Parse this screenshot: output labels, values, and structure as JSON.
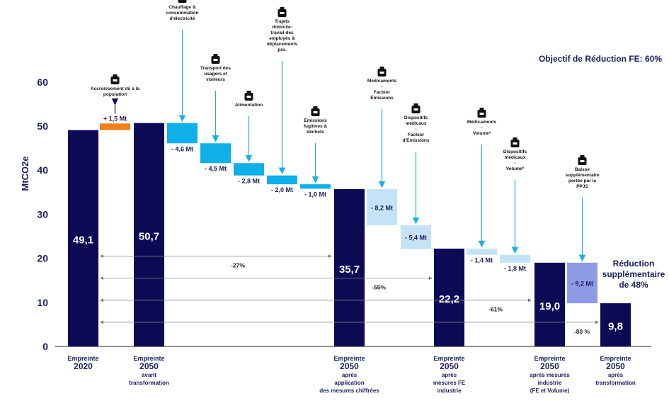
{
  "objective_label": "Objectif de Réduction FE: 60%",
  "extra_reduction_line1": "Réduction",
  "extra_reduction_line2": "supplémentaire",
  "extra_reduction_line3": "de 48%",
  "colors": {
    "navy": "#0c0a55",
    "orange": "#f07f1c",
    "cyan": "#0fb0ea",
    "light_blue": "#c4e3f6",
    "lavender": "#8e9ae6",
    "arrow": "#1aaee6",
    "text": "#1a1f5c"
  },
  "chart_data": {
    "type": "waterfall",
    "ylabel": "MtCO2e",
    "ylim": [
      0,
      60
    ],
    "yticks": [
      0,
      10,
      20,
      30,
      40,
      50,
      60
    ],
    "totals": [
      {
        "value": 49.1,
        "label": "49,1",
        "category": [
          "Empreinte",
          "2020"
        ]
      },
      {
        "value": 50.7,
        "label": "50,7",
        "category": [
          "Empreinte",
          "2050",
          "avant",
          "transformation"
        ]
      },
      {
        "value": 35.7,
        "label": "35,7",
        "category": [
          "Empreinte",
          "2050",
          "après",
          "application",
          "des mesures chiffrées"
        ]
      },
      {
        "value": 22.2,
        "label": "22,2",
        "category": [
          "Empreinte",
          "2050",
          "après",
          "mesures FE",
          "industrie"
        ]
      },
      {
        "value": 19.0,
        "label": "19,0",
        "category": [
          "Empreinte",
          "2050",
          "après mesures",
          "industrie",
          "(FE et Volume)"
        ]
      },
      {
        "value": 9.8,
        "label": "9,8",
        "category": [
          "Empreinte",
          "2050",
          "après",
          "transformation"
        ]
      }
    ],
    "steps": [
      {
        "delta": 1.5,
        "start": 49.1,
        "label": "+ 1,5 Mt",
        "color": "orange",
        "annotation": [
          "Accroissement dû à la",
          "population"
        ],
        "icon": "people-icon"
      },
      {
        "delta": -4.6,
        "start": 50.7,
        "label": "- 4,6 Mt",
        "color": "cyan",
        "annotation": [
          "Chauffage &",
          "consommation",
          "d'électricité"
        ],
        "icon": "thermometer-icon"
      },
      {
        "delta": -4.5,
        "start": 46.1,
        "label": "- 4,5 Mt",
        "color": "cyan",
        "annotation": [
          "Transport des",
          "usagers et",
          "visiteurs"
        ],
        "icon": "ambulance-icon"
      },
      {
        "delta": -2.8,
        "start": 41.6,
        "label": "- 2,8 Mt",
        "color": "cyan",
        "annotation": [
          "Alimentation"
        ],
        "icon": "plate-icon"
      },
      {
        "delta": -2.0,
        "start": 38.8,
        "label": "- 2,0 Mt",
        "color": "cyan",
        "annotation": [
          "Trajets",
          "domicile-",
          "travail des",
          "employés &",
          "déplacements",
          "pro."
        ],
        "icon": "car-icon"
      },
      {
        "delta": -1.0,
        "start": 36.8,
        "label": "- 1,0 Mt",
        "color": "cyan",
        "annotation": [
          "Émissions",
          "fugitives &",
          "déchets"
        ],
        "icon": "trash-icon"
      },
      {
        "delta": -8.2,
        "start": 35.7,
        "label": "- 8,2 Mt",
        "color": "light_blue",
        "annotation": [
          "Médicaments",
          "-",
          "Facteur",
          "Émissions"
        ],
        "icon": "pill-bottle-icon"
      },
      {
        "delta": -5.4,
        "start": 27.5,
        "label": "- 5,4 Mt",
        "color": "light_blue",
        "annotation": [
          "Dispositifs",
          "médicaux",
          "-",
          "Facteur",
          "d'Émissions"
        ],
        "icon": "syringe-stethoscope-icon"
      },
      {
        "delta": -1.4,
        "start": 22.2,
        "label": "- 1,4 Mt",
        "color": "light_blue",
        "annotation": [
          "Médicaments",
          "-",
          "Volume*"
        ],
        "icon": "pill-bottle-icon"
      },
      {
        "delta": -1.8,
        "start": 20.8,
        "label": "- 1,8 Mt",
        "color": "light_blue",
        "annotation": [
          "Dispositifs",
          "médicaux",
          "-",
          "Volume*"
        ],
        "icon": "syringe-stethoscope-icon"
      },
      {
        "delta": -9.2,
        "start": 19.0,
        "label": "- 9,2 Mt",
        "color": "lavender",
        "annotation": [
          "Baisse",
          "supplémentaire",
          "portée par la",
          "PPJS"
        ],
        "icon": "award-icon"
      }
    ],
    "reduction_spans": [
      {
        "label": "-27%",
        "y": 20.5
      },
      {
        "label": "-55%",
        "y": 15.5
      },
      {
        "label": "-61%",
        "y": 10.5
      },
      {
        "label": "-80 %",
        "y": 5.5
      }
    ]
  }
}
